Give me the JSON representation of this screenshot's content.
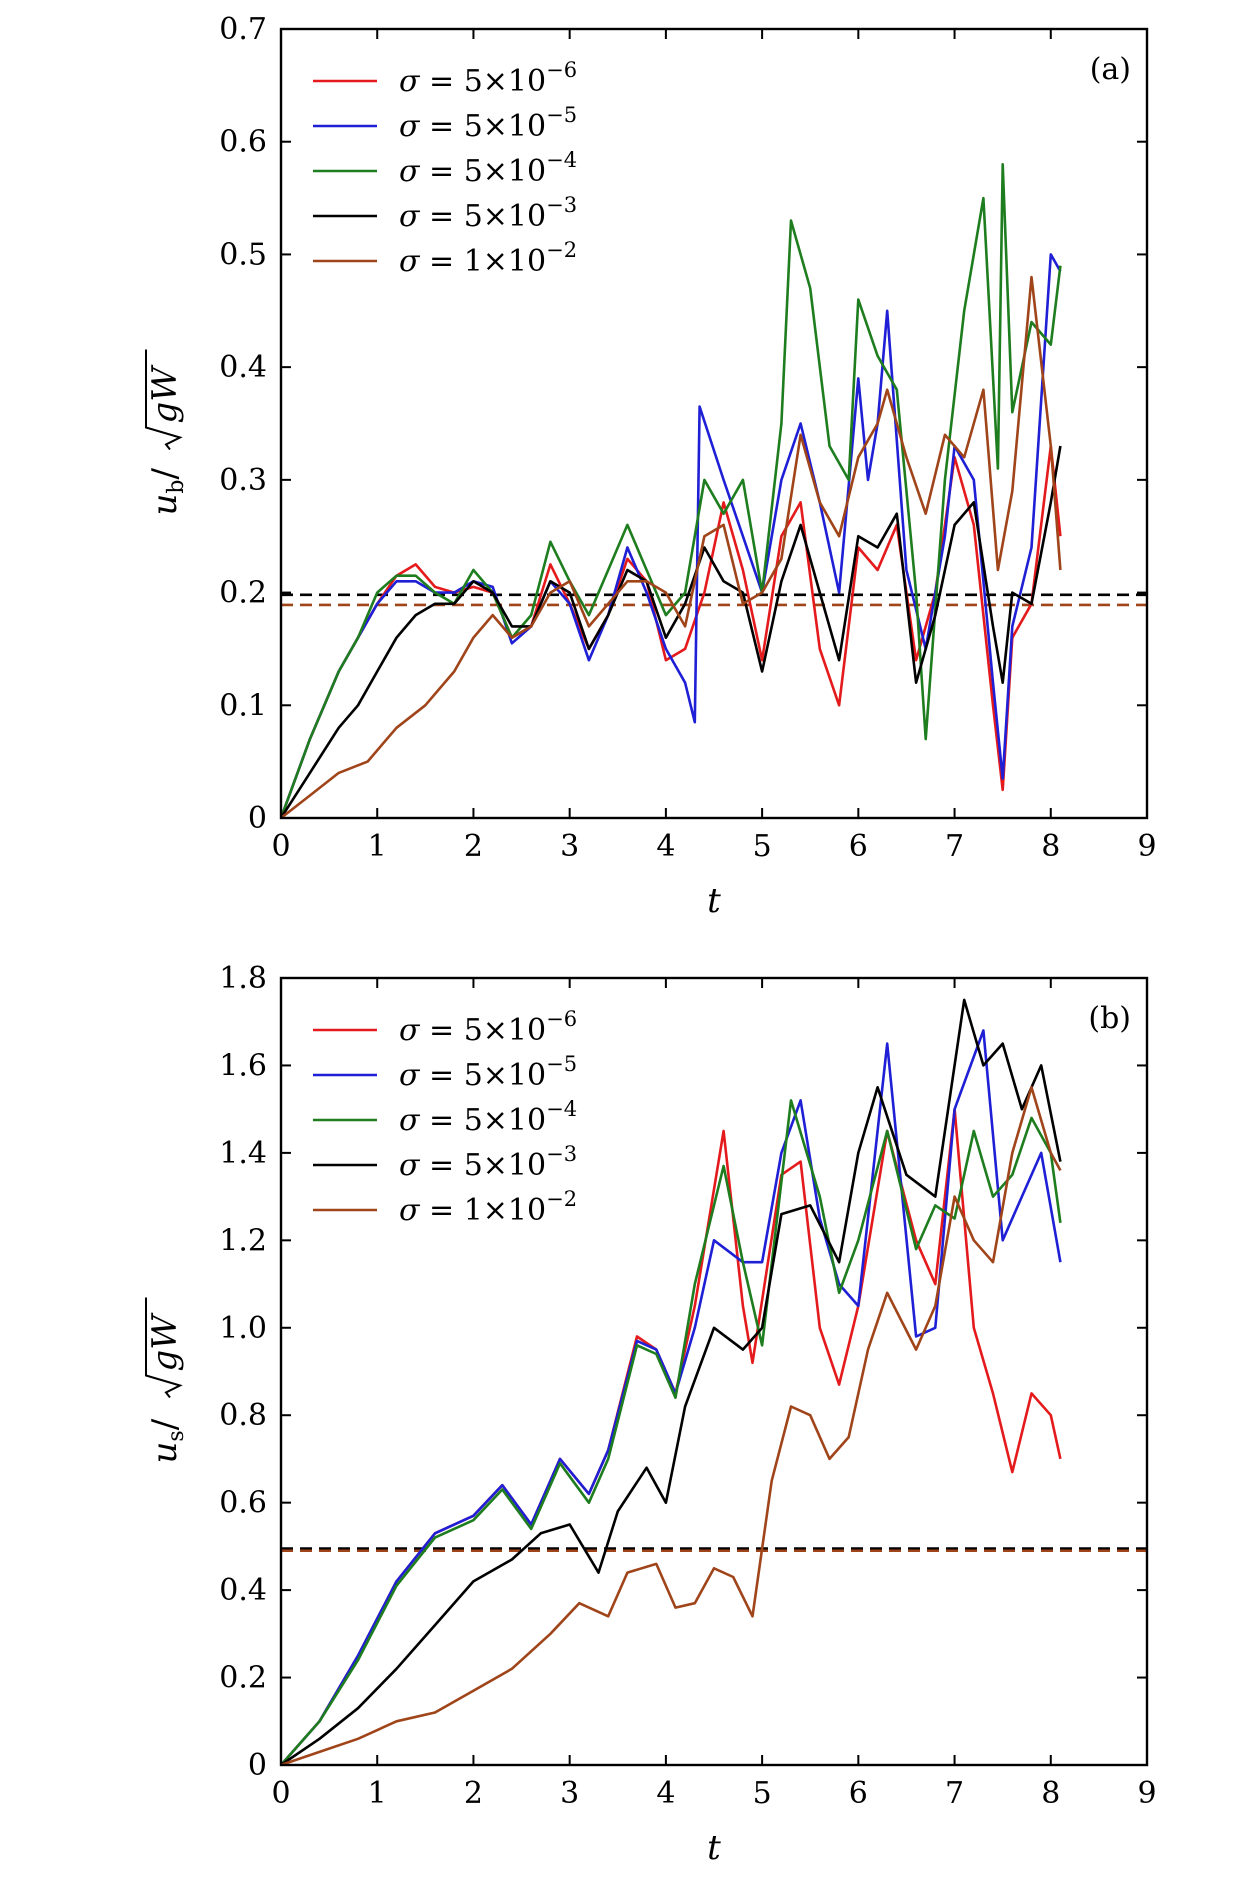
{
  "colors": {
    "red": "#e41a1c",
    "blue": "#1f1fd6",
    "green": "#1e7d1e",
    "black": "#000000",
    "brown": "#a0441a"
  },
  "chart_data": [
    {
      "type": "line",
      "panel_label": "(a)",
      "xlabel": "t",
      "ylabel": "u_b/√gW",
      "ylabel_parts": {
        "main": "u",
        "sub": "b",
        "sep": "/",
        "rad": "gW"
      },
      "xlim": [
        0,
        9
      ],
      "ylim": [
        0,
        0.7
      ],
      "xticks": [
        "0",
        "1",
        "2",
        "3",
        "4",
        "5",
        "6",
        "7",
        "8",
        "9"
      ],
      "yticks": [
        "0",
        "0.1",
        "0.2",
        "0.3",
        "0.4",
        "0.5",
        "0.6",
        "0.7"
      ],
      "legend_position": "top-left",
      "reference_lines": [
        {
          "y": 0.198,
          "color": "#000000",
          "dash": true
        },
        {
          "y": 0.189,
          "color": "#a0441a",
          "dash": true
        }
      ],
      "series": [
        {
          "name": "σ = 5×10⁻⁶",
          "label_parts": {
            "sym": "σ",
            "mant": "5",
            "exp": "−6"
          },
          "color": "#e41a1c",
          "x": [
            0,
            0.3,
            0.6,
            0.8,
            1.0,
            1.2,
            1.4,
            1.6,
            1.8,
            2.0,
            2.2,
            2.4,
            2.6,
            2.8,
            3.0,
            3.2,
            3.4,
            3.6,
            3.8,
            4.0,
            4.2,
            4.4,
            4.6,
            4.8,
            5.0,
            5.2,
            5.4,
            5.6,
            5.8,
            6.0,
            6.2,
            6.4,
            6.6,
            6.8,
            7.0,
            7.2,
            7.4,
            7.5,
            7.6,
            7.8,
            8.0,
            8.1
          ],
          "y": [
            0,
            0.07,
            0.13,
            0.16,
            0.19,
            0.215,
            0.225,
            0.205,
            0.2,
            0.205,
            0.2,
            0.16,
            0.17,
            0.225,
            0.19,
            0.15,
            0.18,
            0.23,
            0.21,
            0.14,
            0.15,
            0.2,
            0.28,
            0.22,
            0.14,
            0.25,
            0.28,
            0.15,
            0.1,
            0.24,
            0.22,
            0.26,
            0.14,
            0.2,
            0.32,
            0.26,
            0.1,
            0.025,
            0.16,
            0.19,
            0.33,
            0.25
          ]
        },
        {
          "name": "σ = 5×10⁻⁵",
          "label_parts": {
            "sym": "σ",
            "mant": "5",
            "exp": "−5"
          },
          "color": "#1f1fd6",
          "x": [
            0,
            0.3,
            0.6,
            0.8,
            1.0,
            1.2,
            1.4,
            1.6,
            1.8,
            2.0,
            2.2,
            2.4,
            2.6,
            2.8,
            3.0,
            3.2,
            3.4,
            3.6,
            3.8,
            4.0,
            4.2,
            4.3,
            4.35,
            4.6,
            4.8,
            5.0,
            5.2,
            5.4,
            5.6,
            5.8,
            6.0,
            6.1,
            6.2,
            6.3,
            6.5,
            6.7,
            6.9,
            7.0,
            7.2,
            7.4,
            7.5,
            7.6,
            7.8,
            8.0,
            8.1
          ],
          "y": [
            0,
            0.07,
            0.13,
            0.16,
            0.19,
            0.21,
            0.21,
            0.2,
            0.2,
            0.21,
            0.205,
            0.155,
            0.17,
            0.21,
            0.19,
            0.14,
            0.18,
            0.24,
            0.2,
            0.15,
            0.12,
            0.085,
            0.365,
            0.3,
            0.25,
            0.2,
            0.3,
            0.35,
            0.28,
            0.2,
            0.39,
            0.3,
            0.35,
            0.45,
            0.22,
            0.15,
            0.25,
            0.33,
            0.3,
            0.12,
            0.035,
            0.17,
            0.24,
            0.5,
            0.485
          ]
        },
        {
          "name": "σ = 5×10⁻⁴",
          "label_parts": {
            "sym": "σ",
            "mant": "5",
            "exp": "−4"
          },
          "color": "#1e7d1e",
          "x": [
            0,
            0.3,
            0.6,
            0.8,
            1.0,
            1.2,
            1.4,
            1.6,
            1.8,
            2.0,
            2.2,
            2.4,
            2.6,
            2.8,
            3.0,
            3.2,
            3.4,
            3.6,
            3.8,
            4.0,
            4.2,
            4.4,
            4.6,
            4.8,
            5.0,
            5.2,
            5.3,
            5.5,
            5.7,
            5.9,
            6.0,
            6.2,
            6.4,
            6.6,
            6.7,
            6.9,
            7.1,
            7.3,
            7.45,
            7.5,
            7.6,
            7.8,
            8.0,
            8.1
          ],
          "y": [
            0,
            0.07,
            0.13,
            0.16,
            0.2,
            0.215,
            0.215,
            0.2,
            0.19,
            0.22,
            0.2,
            0.16,
            0.18,
            0.245,
            0.21,
            0.18,
            0.22,
            0.26,
            0.22,
            0.18,
            0.2,
            0.3,
            0.27,
            0.3,
            0.2,
            0.35,
            0.53,
            0.47,
            0.33,
            0.3,
            0.46,
            0.41,
            0.38,
            0.2,
            0.07,
            0.3,
            0.45,
            0.55,
            0.31,
            0.58,
            0.36,
            0.44,
            0.42,
            0.49
          ]
        },
        {
          "name": "σ = 5×10⁻³",
          "label_parts": {
            "sym": "σ",
            "mant": "5",
            "exp": "−3"
          },
          "color": "#000000",
          "x": [
            0,
            0.3,
            0.6,
            0.8,
            1.0,
            1.2,
            1.4,
            1.6,
            1.8,
            2.0,
            2.2,
            2.4,
            2.6,
            2.8,
            3.0,
            3.2,
            3.4,
            3.6,
            3.8,
            4.0,
            4.2,
            4.4,
            4.6,
            4.8,
            5.0,
            5.2,
            5.4,
            5.6,
            5.8,
            6.0,
            6.2,
            6.4,
            6.6,
            6.8,
            7.0,
            7.2,
            7.4,
            7.5,
            7.6,
            7.8,
            8.0,
            8.1
          ],
          "y": [
            0,
            0.04,
            0.08,
            0.1,
            0.13,
            0.16,
            0.18,
            0.19,
            0.19,
            0.21,
            0.2,
            0.17,
            0.17,
            0.21,
            0.2,
            0.15,
            0.18,
            0.22,
            0.21,
            0.16,
            0.19,
            0.24,
            0.21,
            0.2,
            0.13,
            0.21,
            0.26,
            0.2,
            0.14,
            0.25,
            0.24,
            0.27,
            0.12,
            0.18,
            0.26,
            0.28,
            0.17,
            0.12,
            0.2,
            0.19,
            0.28,
            0.33
          ]
        },
        {
          "name": "σ = 1×10⁻²",
          "label_parts": {
            "sym": "σ",
            "mant": "1",
            "exp": "−2"
          },
          "color": "#a0441a",
          "x": [
            0,
            0.3,
            0.6,
            0.9,
            1.2,
            1.5,
            1.8,
            2.0,
            2.2,
            2.4,
            2.6,
            2.8,
            3.0,
            3.2,
            3.4,
            3.6,
            3.8,
            4.0,
            4.2,
            4.4,
            4.6,
            4.8,
            5.0,
            5.2,
            5.4,
            5.6,
            5.8,
            6.0,
            6.2,
            6.3,
            6.5,
            6.7,
            6.9,
            7.1,
            7.3,
            7.45,
            7.6,
            7.8,
            8.0,
            8.1
          ],
          "y": [
            0,
            0.02,
            0.04,
            0.05,
            0.08,
            0.1,
            0.13,
            0.16,
            0.18,
            0.16,
            0.17,
            0.2,
            0.21,
            0.17,
            0.19,
            0.21,
            0.21,
            0.2,
            0.17,
            0.25,
            0.26,
            0.19,
            0.2,
            0.23,
            0.34,
            0.28,
            0.25,
            0.32,
            0.35,
            0.38,
            0.32,
            0.27,
            0.34,
            0.32,
            0.38,
            0.22,
            0.29,
            0.48,
            0.33,
            0.22
          ]
        }
      ]
    },
    {
      "type": "line",
      "panel_label": "(b)",
      "xlabel": "t",
      "ylabel": "u_s/√gW",
      "ylabel_parts": {
        "main": "u",
        "sub": "s",
        "sep": "/",
        "rad": "gW"
      },
      "xlim": [
        0,
        9
      ],
      "ylim": [
        0,
        1.8
      ],
      "xticks": [
        "0",
        "1",
        "2",
        "3",
        "4",
        "5",
        "6",
        "7",
        "8",
        "9"
      ],
      "yticks": [
        "0",
        "0.2",
        "0.4",
        "0.6",
        "0.8",
        "1.0",
        "1.2",
        "1.4",
        "1.6",
        "1.8"
      ],
      "legend_position": "top-left",
      "reference_lines": [
        {
          "y": 0.495,
          "color": "#000000",
          "dash": true
        },
        {
          "y": 0.49,
          "color": "#a0441a",
          "dash": true
        }
      ],
      "series": [
        {
          "name": "σ = 5×10⁻⁶",
          "label_parts": {
            "sym": "σ",
            "mant": "5",
            "exp": "−6"
          },
          "color": "#e41a1c",
          "x": [
            0,
            0.4,
            0.8,
            1.2,
            1.6,
            2.0,
            2.3,
            2.6,
            2.9,
            3.2,
            3.4,
            3.7,
            3.9,
            4.1,
            4.3,
            4.6,
            4.8,
            4.9,
            5.2,
            5.4,
            5.6,
            5.8,
            6.0,
            6.3,
            6.6,
            6.8,
            7.0,
            7.2,
            7.4,
            7.6,
            7.8,
            8.0,
            8.1
          ],
          "y": [
            0,
            0.1,
            0.25,
            0.42,
            0.53,
            0.57,
            0.64,
            0.55,
            0.7,
            0.62,
            0.72,
            0.98,
            0.95,
            0.85,
            1.05,
            1.45,
            1.05,
            0.92,
            1.35,
            1.38,
            1.0,
            0.87,
            1.05,
            1.45,
            1.2,
            1.1,
            1.5,
            1.0,
            0.85,
            0.67,
            0.85,
            0.8,
            0.7
          ]
        },
        {
          "name": "σ = 5×10⁻⁵",
          "label_parts": {
            "sym": "σ",
            "mant": "5",
            "exp": "−5"
          },
          "color": "#1f1fd6",
          "x": [
            0,
            0.4,
            0.8,
            1.2,
            1.6,
            2.0,
            2.3,
            2.6,
            2.9,
            3.2,
            3.4,
            3.7,
            3.9,
            4.1,
            4.3,
            4.5,
            4.8,
            5.0,
            5.2,
            5.4,
            5.6,
            5.8,
            6.0,
            6.3,
            6.6,
            6.8,
            7.0,
            7.3,
            7.5,
            7.7,
            7.9,
            8.1
          ],
          "y": [
            0,
            0.1,
            0.25,
            0.42,
            0.53,
            0.57,
            0.64,
            0.55,
            0.7,
            0.62,
            0.72,
            0.97,
            0.95,
            0.85,
            1.0,
            1.2,
            1.15,
            1.15,
            1.4,
            1.52,
            1.25,
            1.1,
            1.05,
            1.65,
            0.98,
            1.0,
            1.5,
            1.68,
            1.2,
            1.3,
            1.4,
            1.15
          ]
        },
        {
          "name": "σ = 5×10⁻⁴",
          "label_parts": {
            "sym": "σ",
            "mant": "5",
            "exp": "−4"
          },
          "color": "#1e7d1e",
          "x": [
            0,
            0.4,
            0.8,
            1.2,
            1.6,
            2.0,
            2.3,
            2.6,
            2.9,
            3.2,
            3.4,
            3.7,
            3.9,
            4.1,
            4.3,
            4.6,
            4.8,
            5.0,
            5.3,
            5.6,
            5.8,
            6.0,
            6.3,
            6.6,
            6.8,
            7.0,
            7.2,
            7.4,
            7.6,
            7.8,
            8.0,
            8.1
          ],
          "y": [
            0,
            0.1,
            0.24,
            0.41,
            0.52,
            0.56,
            0.63,
            0.54,
            0.69,
            0.6,
            0.7,
            0.96,
            0.94,
            0.84,
            1.1,
            1.37,
            1.15,
            0.96,
            1.52,
            1.3,
            1.08,
            1.2,
            1.45,
            1.18,
            1.28,
            1.25,
            1.45,
            1.3,
            1.35,
            1.48,
            1.4,
            1.24
          ]
        },
        {
          "name": "σ = 5×10⁻³",
          "label_parts": {
            "sym": "σ",
            "mant": "5",
            "exp": "−3"
          },
          "color": "#000000",
          "x": [
            0,
            0.4,
            0.8,
            1.2,
            1.6,
            2.0,
            2.4,
            2.7,
            3.0,
            3.3,
            3.5,
            3.8,
            4.0,
            4.2,
            4.5,
            4.8,
            5.0,
            5.2,
            5.5,
            5.8,
            6.0,
            6.2,
            6.5,
            6.8,
            7.1,
            7.3,
            7.5,
            7.7,
            7.9,
            8.1
          ],
          "y": [
            0,
            0.06,
            0.13,
            0.22,
            0.32,
            0.42,
            0.47,
            0.53,
            0.55,
            0.44,
            0.58,
            0.68,
            0.6,
            0.82,
            1.0,
            0.95,
            1.0,
            1.26,
            1.28,
            1.15,
            1.4,
            1.55,
            1.35,
            1.3,
            1.75,
            1.6,
            1.65,
            1.5,
            1.6,
            1.38
          ]
        },
        {
          "name": "σ = 1×10⁻²",
          "label_parts": {
            "sym": "σ",
            "mant": "1",
            "exp": "−2"
          },
          "color": "#a0441a",
          "x": [
            0,
            0.4,
            0.8,
            1.2,
            1.6,
            2.0,
            2.4,
            2.8,
            3.1,
            3.4,
            3.6,
            3.9,
            4.1,
            4.3,
            4.5,
            4.7,
            4.9,
            5.1,
            5.3,
            5.5,
            5.7,
            5.9,
            6.1,
            6.3,
            6.6,
            6.8,
            7.0,
            7.2,
            7.4,
            7.6,
            7.8,
            8.0,
            8.1
          ],
          "y": [
            0,
            0.03,
            0.06,
            0.1,
            0.12,
            0.17,
            0.22,
            0.3,
            0.37,
            0.34,
            0.44,
            0.46,
            0.36,
            0.37,
            0.45,
            0.43,
            0.34,
            0.65,
            0.82,
            0.8,
            0.7,
            0.75,
            0.95,
            1.08,
            0.95,
            1.05,
            1.3,
            1.2,
            1.15,
            1.4,
            1.55,
            1.4,
            1.36
          ]
        }
      ]
    }
  ]
}
